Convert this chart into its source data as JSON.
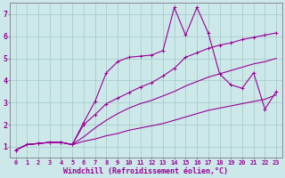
{
  "bg_color": "#cce8e8",
  "grid_color": "#aacccc",
  "line_color": "#990099",
  "xlabel": "Windchill (Refroidissement éolien,°C)",
  "xlim": [
    -0.5,
    23.5
  ],
  "ylim": [
    0.5,
    7.5
  ],
  "xticks": [
    0,
    1,
    2,
    3,
    4,
    5,
    6,
    7,
    8,
    9,
    10,
    11,
    12,
    13,
    14,
    15,
    16,
    17,
    18,
    19,
    20,
    21,
    22,
    23
  ],
  "yticks": [
    1,
    2,
    3,
    4,
    5,
    6,
    7
  ],
  "line1_x": [
    0,
    1,
    2,
    3,
    4,
    5,
    6,
    7,
    8,
    9,
    10,
    11,
    12,
    13,
    14,
    15,
    16,
    17,
    18,
    19,
    20,
    21,
    22,
    23
  ],
  "line1_y": [
    0.85,
    1.1,
    1.15,
    1.2,
    1.2,
    1.1,
    1.25,
    1.35,
    1.5,
    1.6,
    1.75,
    1.85,
    1.95,
    2.05,
    2.2,
    2.35,
    2.5,
    2.65,
    2.75,
    2.85,
    2.95,
    3.05,
    3.15,
    3.35
  ],
  "line2_x": [
    0,
    1,
    2,
    3,
    4,
    5,
    6,
    7,
    8,
    9,
    10,
    11,
    12,
    13,
    14,
    15,
    16,
    17,
    18,
    19,
    20,
    21,
    22,
    23
  ],
  "line2_y": [
    0.85,
    1.1,
    1.15,
    1.2,
    1.2,
    1.1,
    1.45,
    1.85,
    2.2,
    2.5,
    2.75,
    2.95,
    3.1,
    3.3,
    3.5,
    3.75,
    3.95,
    4.15,
    4.3,
    4.45,
    4.6,
    4.75,
    4.85,
    5.0
  ],
  "line3_x": [
    0,
    1,
    2,
    3,
    4,
    5,
    6,
    7,
    8,
    9,
    10,
    11,
    12,
    13,
    14,
    15,
    16,
    17,
    18,
    19,
    20,
    21,
    22,
    23
  ],
  "line3_y": [
    0.85,
    1.1,
    1.15,
    1.2,
    1.2,
    1.1,
    2.0,
    2.45,
    2.95,
    3.2,
    3.45,
    3.7,
    3.9,
    4.2,
    4.55,
    5.05,
    5.25,
    5.45,
    5.6,
    5.7,
    5.85,
    5.95,
    6.05,
    6.15
  ],
  "line4_x": [
    0,
    1,
    2,
    3,
    4,
    5,
    6,
    7,
    8,
    9,
    10,
    11,
    12,
    13,
    14,
    15,
    16,
    17,
    18,
    19,
    20,
    21,
    22,
    23
  ],
  "line4_y": [
    0.85,
    1.1,
    1.15,
    1.2,
    1.2,
    1.1,
    2.1,
    3.05,
    4.35,
    4.85,
    5.05,
    5.1,
    5.15,
    5.35,
    7.3,
    6.05,
    7.3,
    6.15,
    4.3,
    3.8,
    3.65,
    4.35,
    2.7,
    3.5
  ],
  "lines_with_markers": [
    2,
    3
  ],
  "fontsize_x_ticks": 5,
  "fontsize_y_ticks": 6,
  "fontsize_xlabel": 6
}
